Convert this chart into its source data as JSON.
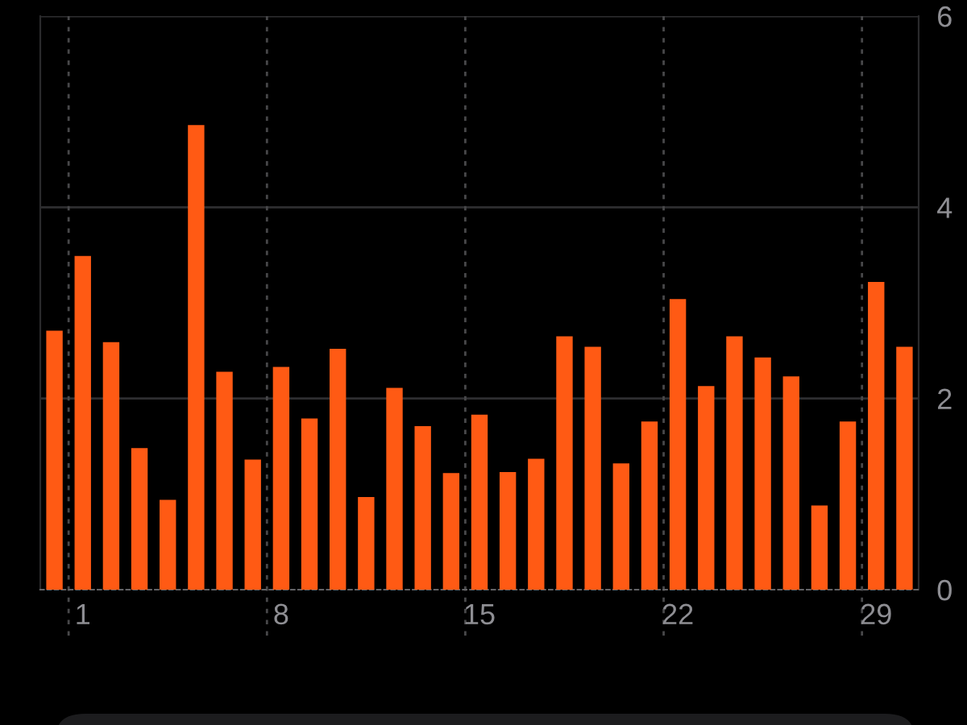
{
  "chart_data": {
    "type": "bar",
    "categories": [
      null,
      "1",
      null,
      null,
      null,
      null,
      null,
      null,
      "8",
      null,
      null,
      null,
      null,
      null,
      null,
      "15",
      null,
      null,
      null,
      null,
      null,
      null,
      "22",
      null,
      null,
      null,
      null,
      null,
      null,
      "29",
      null
    ],
    "values": [
      2.71,
      3.49,
      2.59,
      1.48,
      0.94,
      4.86,
      2.28,
      1.36,
      2.33,
      1.79,
      2.52,
      0.97,
      2.11,
      1.71,
      1.22,
      1.83,
      1.23,
      1.37,
      2.65,
      2.54,
      1.32,
      1.76,
      3.04,
      2.13,
      2.65,
      2.43,
      2.23,
      0.88,
      1.76,
      3.22,
      2.54
    ],
    "color": "#ff5a14",
    "ylim": [
      0,
      6
    ],
    "yticks": [
      0,
      2,
      4,
      6
    ],
    "grid": true
  }
}
